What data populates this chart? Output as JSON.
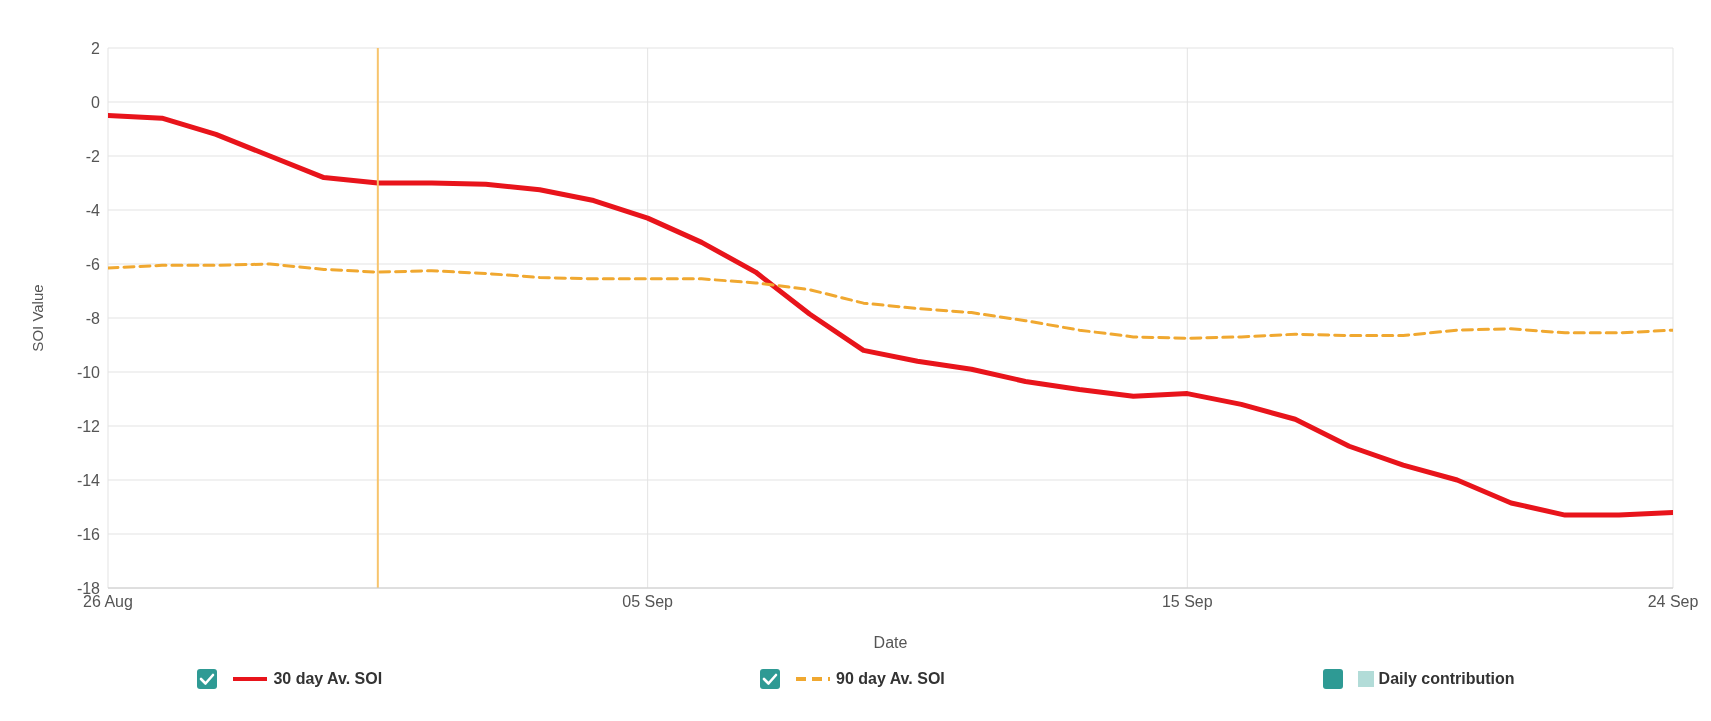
{
  "chart_data": {
    "type": "line",
    "xlabel": "Date",
    "ylabel": "SOI Value",
    "x": [
      "--08-26",
      "--08-27",
      "--08-28",
      "--08-29",
      "--08-30",
      "--08-31",
      "--09-01",
      "--09-02",
      "--09-03",
      "--09-04",
      "--09-05",
      "--09-06",
      "--09-07",
      "--09-08",
      "--09-09",
      "--09-10",
      "--09-11",
      "--09-12",
      "--09-13",
      "--09-14",
      "--09-15",
      "--09-16",
      "--09-17",
      "--09-18",
      "--09-19",
      "--09-20",
      "--09-21",
      "--09-22",
      "--09-23",
      "--09-24"
    ],
    "series": [
      {
        "name": "30 day Av. SOI",
        "color": "#e8141b",
        "line_style": "solid",
        "values": [
          -0.5,
          -0.6,
          -1.2,
          -2.0,
          -2.8,
          -3.0,
          -3.0,
          -3.05,
          -3.25,
          -3.65,
          -4.3,
          -5.2,
          -6.3,
          -7.85,
          -9.2,
          -9.6,
          -9.9,
          -10.35,
          -10.65,
          -10.9,
          -10.8,
          -11.2,
          -11.75,
          -12.75,
          -13.45,
          -14.0,
          -14.85,
          -15.3,
          -15.3,
          -15.2
        ]
      },
      {
        "name": "90 day Av. SOI",
        "color": "#f0a830",
        "line_style": "dashed",
        "values": [
          -6.15,
          -6.05,
          -6.05,
          -6.0,
          -6.2,
          -6.3,
          -6.25,
          -6.35,
          -6.5,
          -6.55,
          -6.55,
          -6.55,
          -6.7,
          -6.95,
          -7.45,
          -7.65,
          -7.8,
          -8.1,
          -8.45,
          -8.7,
          -8.75,
          -8.7,
          -8.6,
          -8.65,
          -8.65,
          -8.45,
          -8.4,
          -8.55,
          -8.55,
          -8.45
        ]
      },
      {
        "name": "Daily contribution",
        "type": "bar",
        "color": "#b2dcd8",
        "values": [
          null,
          null,
          null,
          null,
          null,
          null,
          null,
          null,
          null,
          null,
          null,
          null,
          null,
          null,
          null,
          null,
          null,
          null,
          null,
          null,
          null,
          null,
          null,
          null,
          null,
          null,
          null,
          null,
          null,
          null
        ]
      }
    ],
    "xlim": [
      "--08-26",
      "--09-24"
    ],
    "xticks": [
      {
        "value": "--08-26",
        "label": "26 Aug"
      },
      {
        "value": "--09-05",
        "label": "05 Sep"
      },
      {
        "value": "--09-15",
        "label": "15 Sep"
      },
      {
        "value": "--09-24",
        "label": "24 Sep"
      }
    ],
    "ylim": [
      -18,
      2
    ],
    "yticks": [
      -18,
      -16,
      -14,
      -12,
      -10,
      -8,
      -6,
      -4,
      -2,
      0,
      2
    ],
    "ref_lines": [
      {
        "axis": "x",
        "value": "--08-31",
        "color": "#f7c46c"
      }
    ],
    "grid": true,
    "legend": "bottom",
    "marker": "none"
  }
}
